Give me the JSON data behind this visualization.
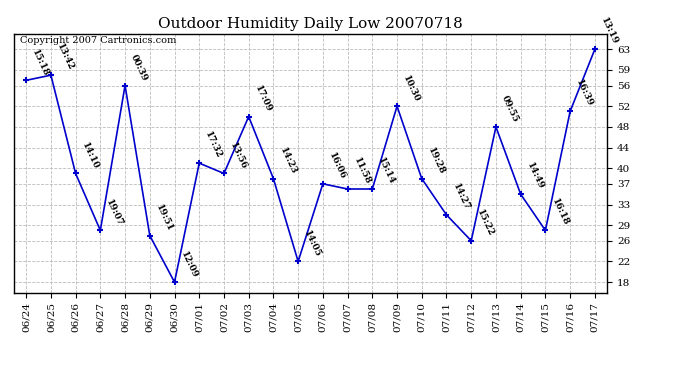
{
  "title": "Outdoor Humidity Daily Low 20070718",
  "copyright": "Copyright 2007 Cartronics.com",
  "dates": [
    "06/24",
    "06/25",
    "06/26",
    "06/27",
    "06/28",
    "06/29",
    "06/30",
    "07/01",
    "07/02",
    "07/03",
    "07/04",
    "07/05",
    "07/06",
    "07/07",
    "07/08",
    "07/09",
    "07/10",
    "07/11",
    "07/12",
    "07/13",
    "07/14",
    "07/15",
    "07/16",
    "07/17"
  ],
  "values": [
    57,
    58,
    39,
    28,
    56,
    27,
    18,
    41,
    39,
    50,
    38,
    22,
    37,
    36,
    36,
    52,
    38,
    31,
    26,
    48,
    35,
    28,
    51,
    63
  ],
  "labels": [
    "15:18",
    "13:42",
    "14:10",
    "19:07",
    "00:39",
    "19:51",
    "12:09",
    "17:32",
    "13:56",
    "17:09",
    "14:23",
    "14:05",
    "16:06",
    "11:58",
    "15:14",
    "10:30",
    "19:28",
    "14:27",
    "15:22",
    "09:55",
    "14:49",
    "16:18",
    "16:39",
    "13:19"
  ],
  "line_color": "#0000cc",
  "marker_color": "#0000cc",
  "bg_color": "#ffffff",
  "plot_bg_color": "#ffffff",
  "grid_color": "#bbbbbb",
  "ylim": [
    16,
    66
  ],
  "yticks": [
    18,
    22,
    26,
    29,
    33,
    37,
    40,
    44,
    48,
    52,
    56,
    59,
    63
  ],
  "title_fontsize": 11,
  "label_fontsize": 6.5,
  "tick_fontsize": 7.5,
  "copyright_fontsize": 7
}
